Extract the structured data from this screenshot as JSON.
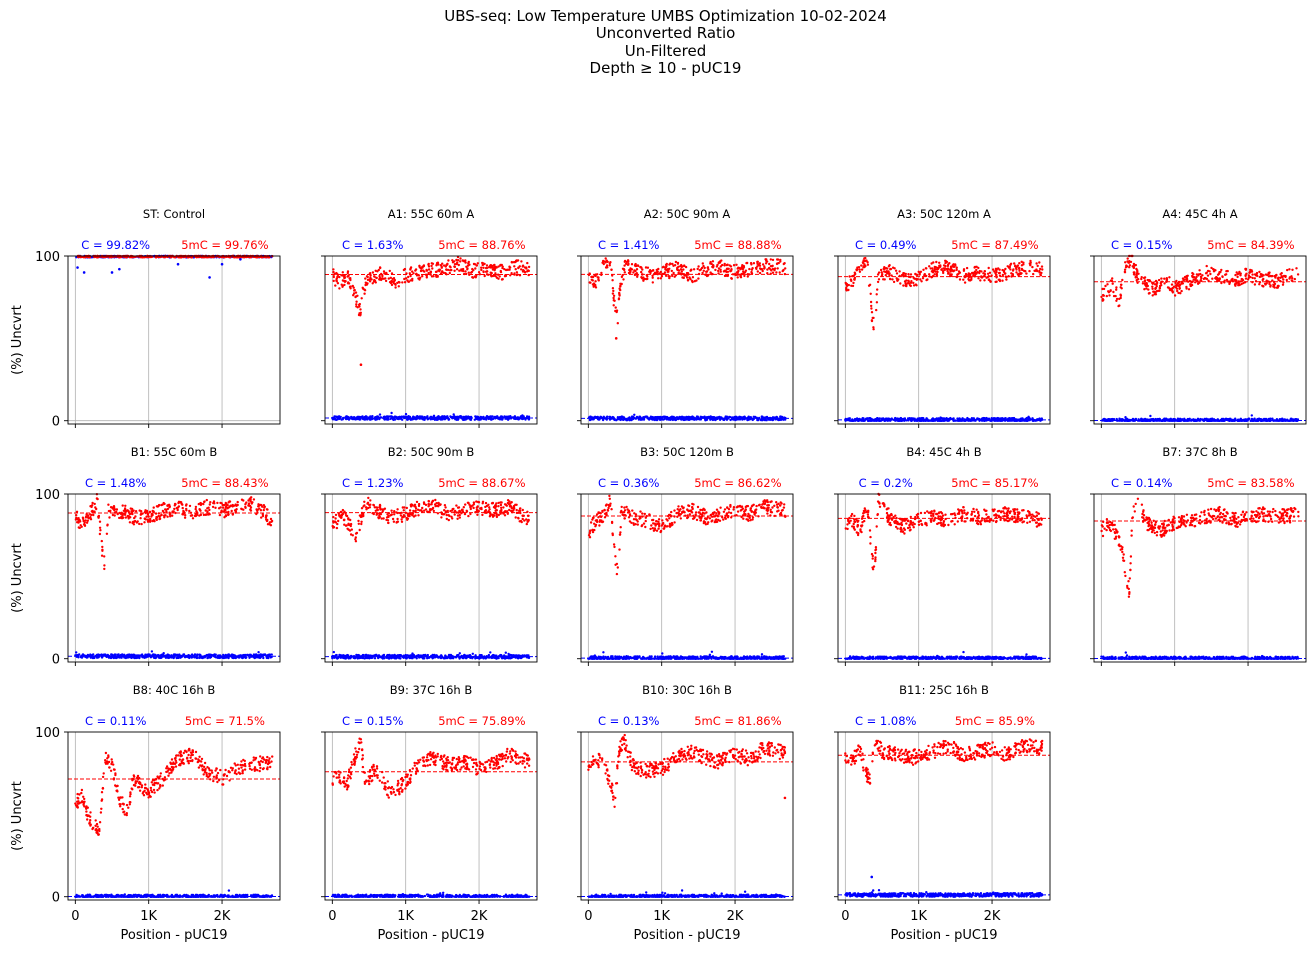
{
  "title_lines": [
    "UBS-seq: Low Temperature UMBS Optimization 10-02-2024",
    "Unconverted Ratio",
    "Un-Filtered",
    "Depth ≥ 10 - pUC19"
  ],
  "colors": {
    "c": "#0000ff",
    "mc": "#ff0000",
    "grid": "#b0b0b0",
    "axis": "#000000"
  },
  "chart_data": {
    "type": "scatter",
    "layout": {
      "rows": 3,
      "cols": 5
    },
    "xlabel": "Position - pUC19",
    "ylabel": "(%) Uncvrt",
    "xlim": [
      -100,
      2790
    ],
    "ylim": [
      -2,
      100
    ],
    "xticks": [
      0,
      1000,
      2000
    ],
    "xticklabels": [
      "0",
      "1K",
      "2K"
    ],
    "yticks": [
      0,
      100
    ],
    "yticklabels": [
      "0",
      "100"
    ],
    "grid": "x",
    "c_prefix": "C = ",
    "mc_prefix": "5mC = ",
    "panels": [
      {
        "title": "ST: Control",
        "c_label": "99.82%",
        "mc_label": "99.76%",
        "c_mean": 99.82,
        "mc_mean": 99.76,
        "profile": [],
        "outliers": [
          [
            30,
            93
          ],
          [
            120,
            90
          ],
          [
            500,
            90
          ],
          [
            600,
            92
          ],
          [
            1400,
            95
          ],
          [
            1830,
            87
          ],
          [
            2000,
            95
          ],
          [
            2250,
            98
          ]
        ]
      },
      {
        "title": "A1: 55C 60m A",
        "c_label": "1.63%",
        "mc_label": "88.76%",
        "c_mean": 1.63,
        "mc_mean": 88.76,
        "profile": [
          [
            0,
            88
          ],
          [
            100,
            84
          ],
          [
            200,
            88
          ],
          [
            280,
            80
          ],
          [
            340,
            72
          ],
          [
            380,
            66
          ],
          [
            420,
            80
          ],
          [
            500,
            86
          ],
          [
            700,
            90
          ],
          [
            900,
            84
          ],
          [
            1000,
            88
          ],
          [
            1300,
            91
          ],
          [
            1500,
            92
          ],
          [
            1700,
            96
          ],
          [
            1900,
            91
          ],
          [
            2100,
            92
          ],
          [
            2300,
            90
          ],
          [
            2500,
            93
          ],
          [
            2700,
            92
          ]
        ],
        "outliers": [
          [
            390,
            34
          ]
        ]
      },
      {
        "title": "A2: 50C 90m A",
        "c_label": "1.41%",
        "mc_label": "88.88%",
        "c_mean": 1.41,
        "mc_mean": 88.88,
        "profile": [
          [
            0,
            88
          ],
          [
            100,
            85
          ],
          [
            200,
            94
          ],
          [
            300,
            99
          ],
          [
            350,
            72
          ],
          [
            400,
            62
          ],
          [
            430,
            80
          ],
          [
            500,
            94
          ],
          [
            700,
            90
          ],
          [
            900,
            88
          ],
          [
            1000,
            90
          ],
          [
            1200,
            92
          ],
          [
            1400,
            88
          ],
          [
            1600,
            92
          ],
          [
            1800,
            93
          ],
          [
            2000,
            90
          ],
          [
            2200,
            92
          ],
          [
            2400,
            94
          ],
          [
            2700,
            93
          ]
        ],
        "outliers": [
          [
            380,
            50
          ]
        ]
      },
      {
        "title": "A3: 50C 120m A",
        "c_label": "0.49%",
        "mc_label": "87.49%",
        "c_mean": 0.49,
        "mc_mean": 87.49,
        "profile": [
          [
            0,
            80
          ],
          [
            100,
            86
          ],
          [
            200,
            92
          ],
          [
            300,
            98
          ],
          [
            360,
            66
          ],
          [
            400,
            56
          ],
          [
            450,
            88
          ],
          [
            600,
            90
          ],
          [
            800,
            85
          ],
          [
            1000,
            86
          ],
          [
            1200,
            92
          ],
          [
            1400,
            93
          ],
          [
            1600,
            88
          ],
          [
            1800,
            90
          ],
          [
            2000,
            88
          ],
          [
            2200,
            90
          ],
          [
            2400,
            93
          ],
          [
            2700,
            92
          ]
        ],
        "outliers": []
      },
      {
        "title": "A4: 45C 4h A",
        "c_label": "0.15%",
        "mc_label": "84.39%",
        "c_mean": 0.15,
        "mc_mean": 84.39,
        "profile": [
          [
            0,
            76
          ],
          [
            150,
            82
          ],
          [
            250,
            72
          ],
          [
            300,
            90
          ],
          [
            400,
            99
          ],
          [
            500,
            86
          ],
          [
            700,
            80
          ],
          [
            900,
            84
          ],
          [
            1000,
            80
          ],
          [
            1200,
            84
          ],
          [
            1400,
            90
          ],
          [
            1600,
            88
          ],
          [
            1800,
            86
          ],
          [
            2000,
            88
          ],
          [
            2200,
            86
          ],
          [
            2400,
            85
          ],
          [
            2700,
            90
          ]
        ],
        "outliers": []
      },
      {
        "title": "B1: 55C 60m B",
        "c_label": "1.48%",
        "mc_label": "88.43%",
        "c_mean": 1.48,
        "mc_mean": 88.43,
        "profile": [
          [
            0,
            86
          ],
          [
            100,
            82
          ],
          [
            200,
            88
          ],
          [
            300,
            96
          ],
          [
            360,
            68
          ],
          [
            400,
            56
          ],
          [
            450,
            90
          ],
          [
            600,
            90
          ],
          [
            800,
            86
          ],
          [
            1000,
            86
          ],
          [
            1200,
            90
          ],
          [
            1400,
            92
          ],
          [
            1600,
            88
          ],
          [
            1800,
            92
          ],
          [
            2000,
            90
          ],
          [
            2200,
            92
          ],
          [
            2400,
            94
          ],
          [
            2600,
            88
          ],
          [
            2700,
            80
          ]
        ],
        "outliers": []
      },
      {
        "title": "B2: 50C 90m B",
        "c_label": "1.23%",
        "mc_label": "88.67%",
        "c_mean": 1.23,
        "mc_mean": 88.67,
        "profile": [
          [
            0,
            82
          ],
          [
            150,
            86
          ],
          [
            250,
            80
          ],
          [
            320,
            72
          ],
          [
            380,
            84
          ],
          [
            450,
            95
          ],
          [
            600,
            90
          ],
          [
            800,
            86
          ],
          [
            1000,
            88
          ],
          [
            1200,
            92
          ],
          [
            1400,
            92
          ],
          [
            1600,
            88
          ],
          [
            1800,
            90
          ],
          [
            2000,
            92
          ],
          [
            2200,
            90
          ],
          [
            2400,
            92
          ],
          [
            2700,
            84
          ]
        ],
        "outliers": []
      },
      {
        "title": "B3: 50C 120m B",
        "c_label": "0.36%",
        "mc_label": "86.62%",
        "c_mean": 0.36,
        "mc_mean": 86.62,
        "profile": [
          [
            0,
            76
          ],
          [
            100,
            84
          ],
          [
            200,
            86
          ],
          [
            300,
            96
          ],
          [
            360,
            62
          ],
          [
            400,
            52
          ],
          [
            450,
            90
          ],
          [
            600,
            86
          ],
          [
            800,
            84
          ],
          [
            1000,
            80
          ],
          [
            1200,
            88
          ],
          [
            1400,
            90
          ],
          [
            1600,
            86
          ],
          [
            1800,
            88
          ],
          [
            2000,
            90
          ],
          [
            2200,
            88
          ],
          [
            2400,
            92
          ],
          [
            2700,
            90
          ]
        ],
        "outliers": []
      },
      {
        "title": "B4: 45C 4h B",
        "c_label": "0.2%",
        "mc_label": "85.17%",
        "c_mean": 0.2,
        "mc_mean": 85.17,
        "profile": [
          [
            0,
            80
          ],
          [
            100,
            84
          ],
          [
            200,
            78
          ],
          [
            300,
            92
          ],
          [
            360,
            62
          ],
          [
            400,
            54
          ],
          [
            450,
            96
          ],
          [
            600,
            86
          ],
          [
            800,
            80
          ],
          [
            1000,
            84
          ],
          [
            1200,
            86
          ],
          [
            1400,
            84
          ],
          [
            1600,
            88
          ],
          [
            1800,
            86
          ],
          [
            2000,
            86
          ],
          [
            2200,
            88
          ],
          [
            2400,
            86
          ],
          [
            2700,
            84
          ]
        ],
        "outliers": []
      },
      {
        "title": "B7: 37C 8h B",
        "c_label": "0.14%",
        "mc_label": "83.58%",
        "c_mean": 0.14,
        "mc_mean": 83.58,
        "profile": [
          [
            0,
            78
          ],
          [
            100,
            82
          ],
          [
            200,
            76
          ],
          [
            300,
            62
          ],
          [
            380,
            40
          ],
          [
            420,
            85
          ],
          [
            500,
            98
          ],
          [
            600,
            82
          ],
          [
            800,
            78
          ],
          [
            1000,
            82
          ],
          [
            1200,
            84
          ],
          [
            1400,
            86
          ],
          [
            1600,
            88
          ],
          [
            1800,
            84
          ],
          [
            2000,
            86
          ],
          [
            2200,
            88
          ],
          [
            2400,
            86
          ],
          [
            2700,
            88
          ]
        ],
        "outliers": []
      },
      {
        "title": "B8: 40C 16h B",
        "c_label": "0.11%",
        "mc_label": "71.5%",
        "c_mean": 0.11,
        "mc_mean": 71.5,
        "profile": [
          [
            0,
            56
          ],
          [
            80,
            62
          ],
          [
            150,
            52
          ],
          [
            250,
            44
          ],
          [
            330,
            40
          ],
          [
            400,
            86
          ],
          [
            500,
            80
          ],
          [
            600,
            60
          ],
          [
            700,
            52
          ],
          [
            800,
            72
          ],
          [
            900,
            66
          ],
          [
            1000,
            64
          ],
          [
            1200,
            72
          ],
          [
            1400,
            84
          ],
          [
            1600,
            86
          ],
          [
            1800,
            76
          ],
          [
            2000,
            72
          ],
          [
            2200,
            78
          ],
          [
            2400,
            80
          ],
          [
            2700,
            82
          ]
        ],
        "outliers": []
      },
      {
        "title": "B9: 37C 16h B",
        "c_label": "0.15%",
        "mc_label": "75.89%",
        "c_mean": 0.15,
        "mc_mean": 75.89,
        "profile": [
          [
            0,
            70
          ],
          [
            100,
            74
          ],
          [
            200,
            68
          ],
          [
            300,
            84
          ],
          [
            380,
            95
          ],
          [
            450,
            70
          ],
          [
            600,
            78
          ],
          [
            700,
            70
          ],
          [
            800,
            62
          ],
          [
            900,
            66
          ],
          [
            1000,
            70
          ],
          [
            1200,
            82
          ],
          [
            1400,
            84
          ],
          [
            1600,
            80
          ],
          [
            1800,
            82
          ],
          [
            2000,
            78
          ],
          [
            2200,
            80
          ],
          [
            2400,
            86
          ],
          [
            2700,
            82
          ]
        ],
        "outliers": []
      },
      {
        "title": "B10: 30C 16h B",
        "c_label": "0.13%",
        "mc_label": "81.86%",
        "c_mean": 0.13,
        "mc_mean": 81.86,
        "profile": [
          [
            0,
            78
          ],
          [
            100,
            84
          ],
          [
            200,
            80
          ],
          [
            300,
            70
          ],
          [
            360,
            56
          ],
          [
            420,
            90
          ],
          [
            500,
            94
          ],
          [
            600,
            80
          ],
          [
            800,
            76
          ],
          [
            1000,
            78
          ],
          [
            1200,
            84
          ],
          [
            1400,
            88
          ],
          [
            1600,
            84
          ],
          [
            1800,
            82
          ],
          [
            2000,
            86
          ],
          [
            2200,
            84
          ],
          [
            2400,
            90
          ],
          [
            2600,
            88
          ]
        ],
        "outliers": [
          [
            2680,
            60
          ]
        ]
      },
      {
        "title": "B11: 25C 16h B",
        "c_label": "1.08%",
        "mc_label": "85.9%",
        "c_mean": 1.08,
        "mc_mean": 85.9,
        "profile": [
          [
            0,
            86
          ],
          [
            100,
            82
          ],
          [
            200,
            90
          ],
          [
            280,
            74
          ],
          [
            340,
            72
          ],
          [
            400,
            96
          ],
          [
            500,
            88
          ],
          [
            700,
            86
          ],
          [
            900,
            84
          ],
          [
            1000,
            86
          ],
          [
            1200,
            88
          ],
          [
            1400,
            92
          ],
          [
            1600,
            86
          ],
          [
            1800,
            88
          ],
          [
            2000,
            90
          ],
          [
            2200,
            86
          ],
          [
            2400,
            92
          ],
          [
            2700,
            90
          ]
        ],
        "outliers": [
          [
            360,
            12
          ]
        ]
      }
    ]
  }
}
